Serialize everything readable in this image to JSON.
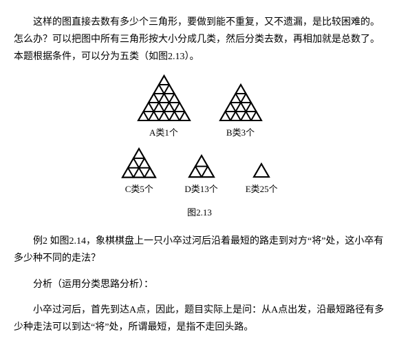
{
  "paragraphs": {
    "p1": "这样的图直接去数有多少个三角形，要做到能不重复，又不遗漏，是比较困难的。怎么办？可以把图中所有三角形按大小分成几类，然后分类去数，再相加就是总数了。本题根据条件，可以分为五类（如图2.13）。",
    "p2": "例2 如图2.14，象棋棋盘上一只小卒过河后沿着最短的路走到对方“将”处，这小卒有多少种不同的走法？",
    "p3": "分析（运用分类思路分析）：",
    "p4": "小卒过河后，首先到达A点，因此，题目实际上是问：从A点出发，沿最短路径有多少种走法可以到达“将”处，所谓最短，是指不走回头路。"
  },
  "figure": {
    "caption_all": "图2.13",
    "triangles": [
      {
        "id": "A",
        "levels": 5,
        "unit": 15,
        "label": "A类1个",
        "stroke": "#000",
        "sw": 2
      },
      {
        "id": "B",
        "levels": 4,
        "unit": 15,
        "label": "B类3个",
        "stroke": "#000",
        "sw": 2
      },
      {
        "id": "C",
        "levels": 3,
        "unit": 16,
        "label": "C类5个",
        "stroke": "#000",
        "sw": 2
      },
      {
        "id": "D",
        "levels": 2,
        "unit": 18,
        "label": "D类13个",
        "stroke": "#000",
        "sw": 2
      },
      {
        "id": "E",
        "levels": 1,
        "unit": 22,
        "label": "E类25个",
        "stroke": "#000",
        "sw": 2
      }
    ],
    "row_split": 2
  }
}
